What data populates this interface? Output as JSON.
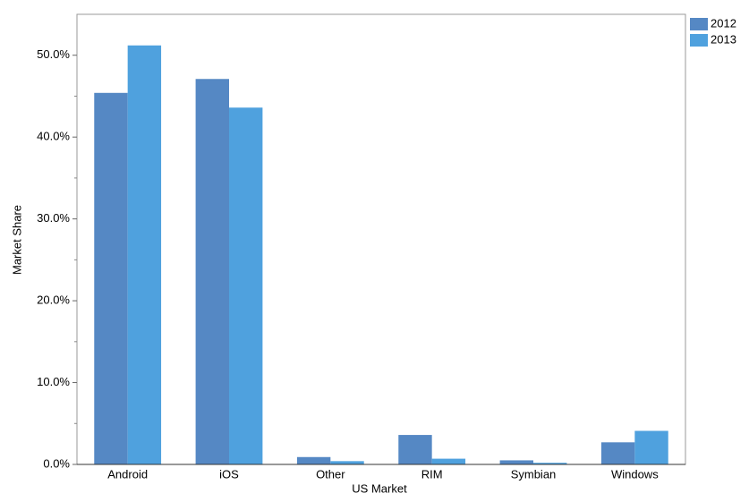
{
  "chart_data": {
    "type": "bar",
    "x_label": "US Market",
    "y_label": "Market Share",
    "categories": [
      "Android",
      "iOS",
      "Other",
      "RIM",
      "Symbian",
      "Windows"
    ],
    "series": [
      {
        "name": "2012",
        "color": "#5588c4",
        "values": [
          45.4,
          47.1,
          0.9,
          3.6,
          0.5,
          2.7
        ]
      },
      {
        "name": "2013",
        "color": "#4fa1de",
        "values": [
          51.2,
          43.6,
          0.4,
          0.7,
          0.2,
          4.1
        ]
      }
    ],
    "ylim": [
      0,
      55
    ],
    "yticks": [
      {
        "value": 0,
        "label": "0.0%"
      },
      {
        "value": 10,
        "label": "10.0%"
      },
      {
        "value": 20,
        "label": "20.0%"
      },
      {
        "value": 30,
        "label": "30.0%"
      },
      {
        "value": 40,
        "label": "40.0%"
      },
      {
        "value": 50,
        "label": "50.0%"
      }
    ],
    "minor_yticks": [
      5,
      15,
      25,
      35,
      45
    ],
    "grid": false,
    "legend": "top-right-outside"
  }
}
